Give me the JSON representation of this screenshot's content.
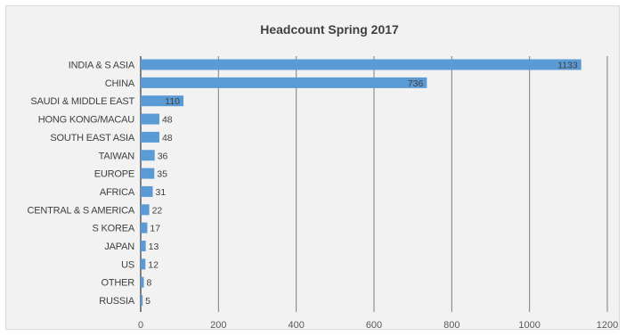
{
  "chart_data": {
    "type": "bar",
    "orientation": "horizontal",
    "title": "Headcount Spring 2017",
    "categories": [
      "INDIA & S ASIA",
      "CHINA",
      "SAUDI & MIDDLE EAST",
      "HONG KONG/MACAU",
      "SOUTH EAST ASIA",
      "TAIWAN",
      "EUROPE",
      "AFRICA",
      "CENTRAL & S AMERICA",
      "S KOREA",
      "JAPAN",
      "US",
      "OTHER",
      "RUSSIA"
    ],
    "values": [
      1133,
      736,
      110,
      48,
      48,
      36,
      35,
      31,
      22,
      17,
      13,
      12,
      8,
      5
    ],
    "data_labels": [
      "1133",
      "736",
      "110",
      "48",
      "48",
      "36",
      "35",
      "31",
      "22",
      "17",
      "13",
      "12",
      "8",
      "5"
    ],
    "xlim": [
      0,
      1200
    ],
    "xticks": [
      0,
      200,
      400,
      600,
      800,
      1000,
      1200
    ],
    "xtick_labels": [
      "0",
      "200",
      "400",
      "600",
      "800",
      "1000",
      "1200"
    ],
    "xlabel": "",
    "ylabel": "",
    "grid": "vertical",
    "legend": "none",
    "colors": {
      "bar": "#5b9bd5",
      "background": "#f2f2f2",
      "gridline": "#7f7f7f"
    }
  }
}
